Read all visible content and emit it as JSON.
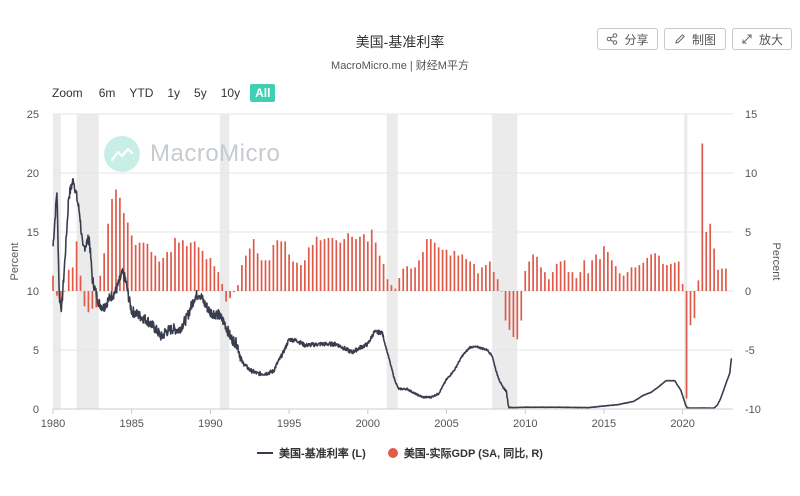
{
  "header": {
    "title": "美国-基准利率",
    "subtitle": "MacroMicro.me | 财经M平方"
  },
  "toolbar": {
    "share_label": "分享",
    "draw_label": "制图",
    "zoom_label": "放大"
  },
  "range_selector": {
    "label": "Zoom",
    "buttons": [
      "6m",
      "YTD",
      "1y",
      "5y",
      "10y",
      "All"
    ],
    "active": "All"
  },
  "watermark": {
    "text": "MacroMicro"
  },
  "legend": {
    "items": [
      {
        "label": "美国-基准利率 (L)",
        "color": "#3a3d4d"
      },
      {
        "label": "美国-实际GDP (SA, 同比, R)",
        "color": "#e05a4a"
      }
    ]
  },
  "chart_data": {
    "type": "line",
    "title": "美国-基准利率",
    "subtitle": "MacroMicro.me | 财经M平方",
    "xlim": [
      1980,
      2023.2
    ],
    "x_ticks": [
      1980,
      1985,
      1990,
      1995,
      2000,
      2005,
      2010,
      2015,
      2020
    ],
    "y_left": {
      "label": "Percent",
      "range": [
        0,
        25
      ],
      "ticks": [
        0,
        5,
        10,
        15,
        20,
        25
      ]
    },
    "y_right": {
      "label": "Percent",
      "range": [
        -10,
        15
      ],
      "ticks": [
        -10,
        -5,
        0,
        5,
        10,
        15
      ]
    },
    "grid": true,
    "legend_position": "bottom-center",
    "recessions": [
      [
        1980.0,
        1980.5
      ],
      [
        1981.5,
        1982.9
      ],
      [
        1990.6,
        1991.2
      ],
      [
        2001.2,
        2001.9
      ],
      [
        2007.9,
        2009.5
      ],
      [
        2020.1,
        2020.3
      ]
    ],
    "series": [
      {
        "name": "美国-基准利率 (L)",
        "axis": "left",
        "type": "line",
        "color": "#3a3d4d",
        "x": [
          1980.0,
          1980.25,
          1980.4,
          1980.55,
          1980.75,
          1981.0,
          1981.3,
          1981.5,
          1981.7,
          1981.9,
          1982.1,
          1982.3,
          1982.5,
          1982.7,
          1982.9,
          1983.2,
          1983.6,
          1984.0,
          1984.4,
          1984.6,
          1984.8,
          1985.0,
          1985.5,
          1986.0,
          1986.5,
          1986.9,
          1987.0,
          1987.1,
          1987.6,
          1988.0,
          1988.5,
          1989.0,
          1989.3,
          1989.6,
          1990.0,
          1990.5,
          1990.9,
          1991.3,
          1991.7,
          1992.0,
          1992.5,
          1993.0,
          1993.5,
          1994.0,
          1994.3,
          1994.6,
          1995.0,
          1995.5,
          1996.0,
          1997.0,
          1998.0,
          1998.7,
          1999.0,
          1999.5,
          2000.0,
          2000.4,
          2000.9,
          2001.1,
          2001.4,
          2001.7,
          2001.95,
          2002.5,
          2003.0,
          2003.5,
          2004.0,
          2004.5,
          2005.0,
          2005.5,
          2006.0,
          2006.5,
          2007.0,
          2007.6,
          2007.9,
          2008.2,
          2008.5,
          2008.8,
          2008.95,
          2009.2,
          2010.0,
          2012.0,
          2014.0,
          2015.9,
          2016.9,
          2017.5,
          2018.0,
          2018.5,
          2018.95,
          2019.5,
          2019.9,
          2020.2,
          2020.3,
          2021.0,
          2022.0,
          2022.2,
          2022.4,
          2022.6,
          2022.8,
          2023.0,
          2023.1
        ],
        "values": [
          13.8,
          18.5,
          9.5,
          8.5,
          12.5,
          18.0,
          19.5,
          18.0,
          16.5,
          13.5,
          14.0,
          14.5,
          11.0,
          10.0,
          9.0,
          8.6,
          9.4,
          10.0,
          11.5,
          11.0,
          9.5,
          8.3,
          7.9,
          7.5,
          6.8,
          6.1,
          6.2,
          6.5,
          6.8,
          6.7,
          7.7,
          9.5,
          9.8,
          9.0,
          8.2,
          8.0,
          7.3,
          6.0,
          5.5,
          4.0,
          3.3,
          3.0,
          3.0,
          3.2,
          4.0,
          4.7,
          5.9,
          5.8,
          5.4,
          5.5,
          5.5,
          5.0,
          4.8,
          5.2,
          5.5,
          6.5,
          6.5,
          5.5,
          4.0,
          2.5,
          1.7,
          1.7,
          1.3,
          1.0,
          1.0,
          1.3,
          2.5,
          3.3,
          4.5,
          5.25,
          5.25,
          5.0,
          4.5,
          3.0,
          2.0,
          1.5,
          0.15,
          0.12,
          0.15,
          0.15,
          0.12,
          0.37,
          0.65,
          1.16,
          1.41,
          1.91,
          2.4,
          2.4,
          1.55,
          0.3,
          0.08,
          0.08,
          0.08,
          0.33,
          0.83,
          1.58,
          2.33,
          3.08,
          4.3
        ]
      },
      {
        "name": "美国-实际GDP (SA, 同比, R)",
        "axis": "right",
        "type": "bar",
        "color": "#e05a4a",
        "x": [
          1980.0,
          1980.25,
          1980.5,
          1980.75,
          1981.0,
          1981.25,
          1981.5,
          1981.75,
          1982.0,
          1982.25,
          1982.5,
          1982.75,
          1983.0,
          1983.25,
          1983.5,
          1983.75,
          1984.0,
          1984.25,
          1984.5,
          1984.75,
          1985.0,
          1985.25,
          1985.5,
          1985.75,
          1986.0,
          1986.25,
          1986.5,
          1986.75,
          1987.0,
          1987.25,
          1987.5,
          1987.75,
          1988.0,
          1988.25,
          1988.5,
          1988.75,
          1989.0,
          1989.25,
          1989.5,
          1989.75,
          1990.0,
          1990.25,
          1990.5,
          1990.75,
          1991.0,
          1991.25,
          1991.5,
          1991.75,
          1992.0,
          1992.25,
          1992.5,
          1992.75,
          1993.0,
          1993.25,
          1993.5,
          1993.75,
          1994.0,
          1994.25,
          1994.5,
          1994.75,
          1995.0,
          1995.25,
          1995.5,
          1995.75,
          1996.0,
          1996.25,
          1996.5,
          1996.75,
          1997.0,
          1997.25,
          1997.5,
          1997.75,
          1998.0,
          1998.25,
          1998.5,
          1998.75,
          1999.0,
          1999.25,
          1999.5,
          1999.75,
          2000.0,
          2000.25,
          2000.5,
          2000.75,
          2001.0,
          2001.25,
          2001.5,
          2001.75,
          2002.0,
          2002.25,
          2002.5,
          2002.75,
          2003.0,
          2003.25,
          2003.5,
          2003.75,
          2004.0,
          2004.25,
          2004.5,
          2004.75,
          2005.0,
          2005.25,
          2005.5,
          2005.75,
          2006.0,
          2006.25,
          2006.5,
          2006.75,
          2007.0,
          2007.25,
          2007.5,
          2007.75,
          2008.0,
          2008.25,
          2008.5,
          2008.75,
          2009.0,
          2009.25,
          2009.5,
          2009.75,
          2010.0,
          2010.25,
          2010.5,
          2010.75,
          2011.0,
          2011.25,
          2011.5,
          2011.75,
          2012.0,
          2012.25,
          2012.5,
          2012.75,
          2013.0,
          2013.25,
          2013.5,
          2013.75,
          2014.0,
          2014.25,
          2014.5,
          2014.75,
          2015.0,
          2015.25,
          2015.5,
          2015.75,
          2016.0,
          2016.25,
          2016.5,
          2016.75,
          2017.0,
          2017.25,
          2017.5,
          2017.75,
          2018.0,
          2018.25,
          2018.5,
          2018.75,
          2019.0,
          2019.25,
          2019.5,
          2019.75,
          2020.0,
          2020.25,
          2020.5,
          2020.75,
          2021.0,
          2021.25,
          2021.5,
          2021.75,
          2022.0,
          2022.25,
          2022.5,
          2022.75
        ],
        "values": [
          1.3,
          -0.4,
          -1.0,
          0.0,
          1.8,
          2.0,
          4.2,
          1.3,
          -1.3,
          -1.8,
          -1.5,
          -1.4,
          1.3,
          3.2,
          5.7,
          7.8,
          8.6,
          7.9,
          6.6,
          5.8,
          4.7,
          3.9,
          4.1,
          4.1,
          4.0,
          3.3,
          3.0,
          2.5,
          2.8,
          3.3,
          3.3,
          4.5,
          4.1,
          4.3,
          3.8,
          4.1,
          4.2,
          3.7,
          3.4,
          2.7,
          2.8,
          2.1,
          1.6,
          0.6,
          -0.9,
          -0.6,
          -0.1,
          0.5,
          2.2,
          3.0,
          3.6,
          4.4,
          3.2,
          2.6,
          2.6,
          2.6,
          3.9,
          4.3,
          4.2,
          4.2,
          3.1,
          2.5,
          2.4,
          2.2,
          2.6,
          3.7,
          3.9,
          4.6,
          4.3,
          4.4,
          4.5,
          4.5,
          4.3,
          4.1,
          4.4,
          4.9,
          4.6,
          4.4,
          4.6,
          4.8,
          4.2,
          5.2,
          4.1,
          3.0,
          2.3,
          1.0,
          0.5,
          0.2,
          1.1,
          1.9,
          2.1,
          1.9,
          2.0,
          2.6,
          3.3,
          4.4,
          4.4,
          4.1,
          3.7,
          3.5,
          3.5,
          3.0,
          3.4,
          3.0,
          3.1,
          2.7,
          2.5,
          2.3,
          1.5,
          2.0,
          2.2,
          2.5,
          1.6,
          1.0,
          0.0,
          -2.5,
          -3.3,
          -3.9,
          -4.1,
          -2.5,
          1.7,
          2.5,
          3.1,
          2.9,
          2.0,
          1.6,
          1.0,
          1.6,
          2.3,
          2.5,
          2.6,
          1.6,
          1.6,
          1.1,
          1.6,
          2.6,
          1.5,
          2.6,
          3.1,
          2.7,
          3.8,
          3.3,
          2.6,
          2.1,
          1.5,
          1.3,
          1.6,
          2.0,
          2.0,
          2.2,
          2.4,
          2.8,
          3.1,
          3.2,
          3.0,
          2.3,
          2.2,
          2.3,
          2.4,
          2.5,
          0.6,
          -9.1,
          -2.9,
          -2.3,
          0.9,
          12.5,
          5.0,
          5.7,
          3.6,
          1.8,
          1.9,
          1.9
        ]
      }
    ]
  }
}
